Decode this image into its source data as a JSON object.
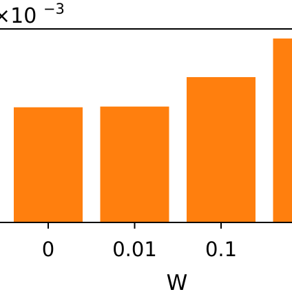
{
  "chart_data": {
    "type": "bar",
    "title": "",
    "xlabel": "W",
    "ylabel": "",
    "y_offset_text": "×10",
    "y_offset_exponent": "−3",
    "categories": [
      "0",
      "0.01",
      "0.1",
      ""
    ],
    "values": [
      0.626,
      0.63,
      0.79,
      1.0
    ],
    "ylim": [
      0,
      1.052
    ],
    "bar_color": "#ff7f0e",
    "grid": false,
    "legend": "none"
  }
}
